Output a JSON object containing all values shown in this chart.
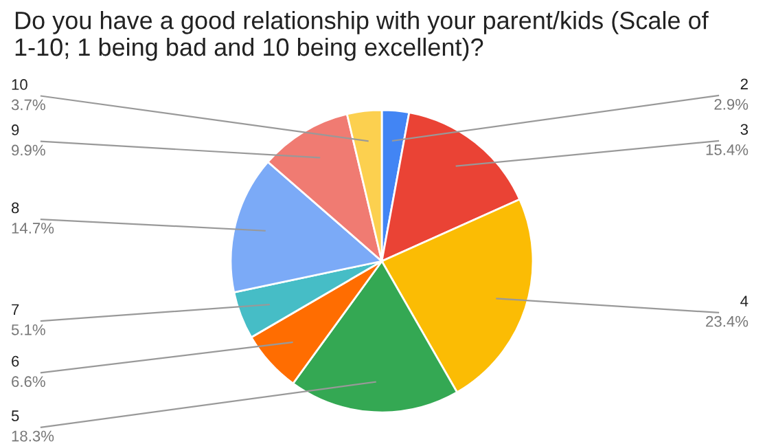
{
  "chart_data": {
    "type": "pie",
    "title": "Do you have a good relationship with your parent/kids (Scale of 1-10; 1 being bad and 10 being excellent)?",
    "categories": [
      "2",
      "3",
      "4",
      "5",
      "6",
      "7",
      "8",
      "9",
      "10"
    ],
    "values": [
      2.9,
      15.4,
      23.4,
      18.3,
      6.6,
      5.1,
      14.7,
      9.9,
      3.7
    ],
    "value_labels": [
      "2.9%",
      "15.4%",
      "23.4%",
      "18.3%",
      "6.6%",
      "5.1%",
      "14.7%",
      "9.9%",
      "3.7%"
    ],
    "colors": [
      "#4285f4",
      "#ea4335",
      "#fbbc04",
      "#34a853",
      "#ff6d01",
      "#46bdc6",
      "#7baaf7",
      "#f07b72",
      "#fcd04f"
    ],
    "legend": false
  }
}
